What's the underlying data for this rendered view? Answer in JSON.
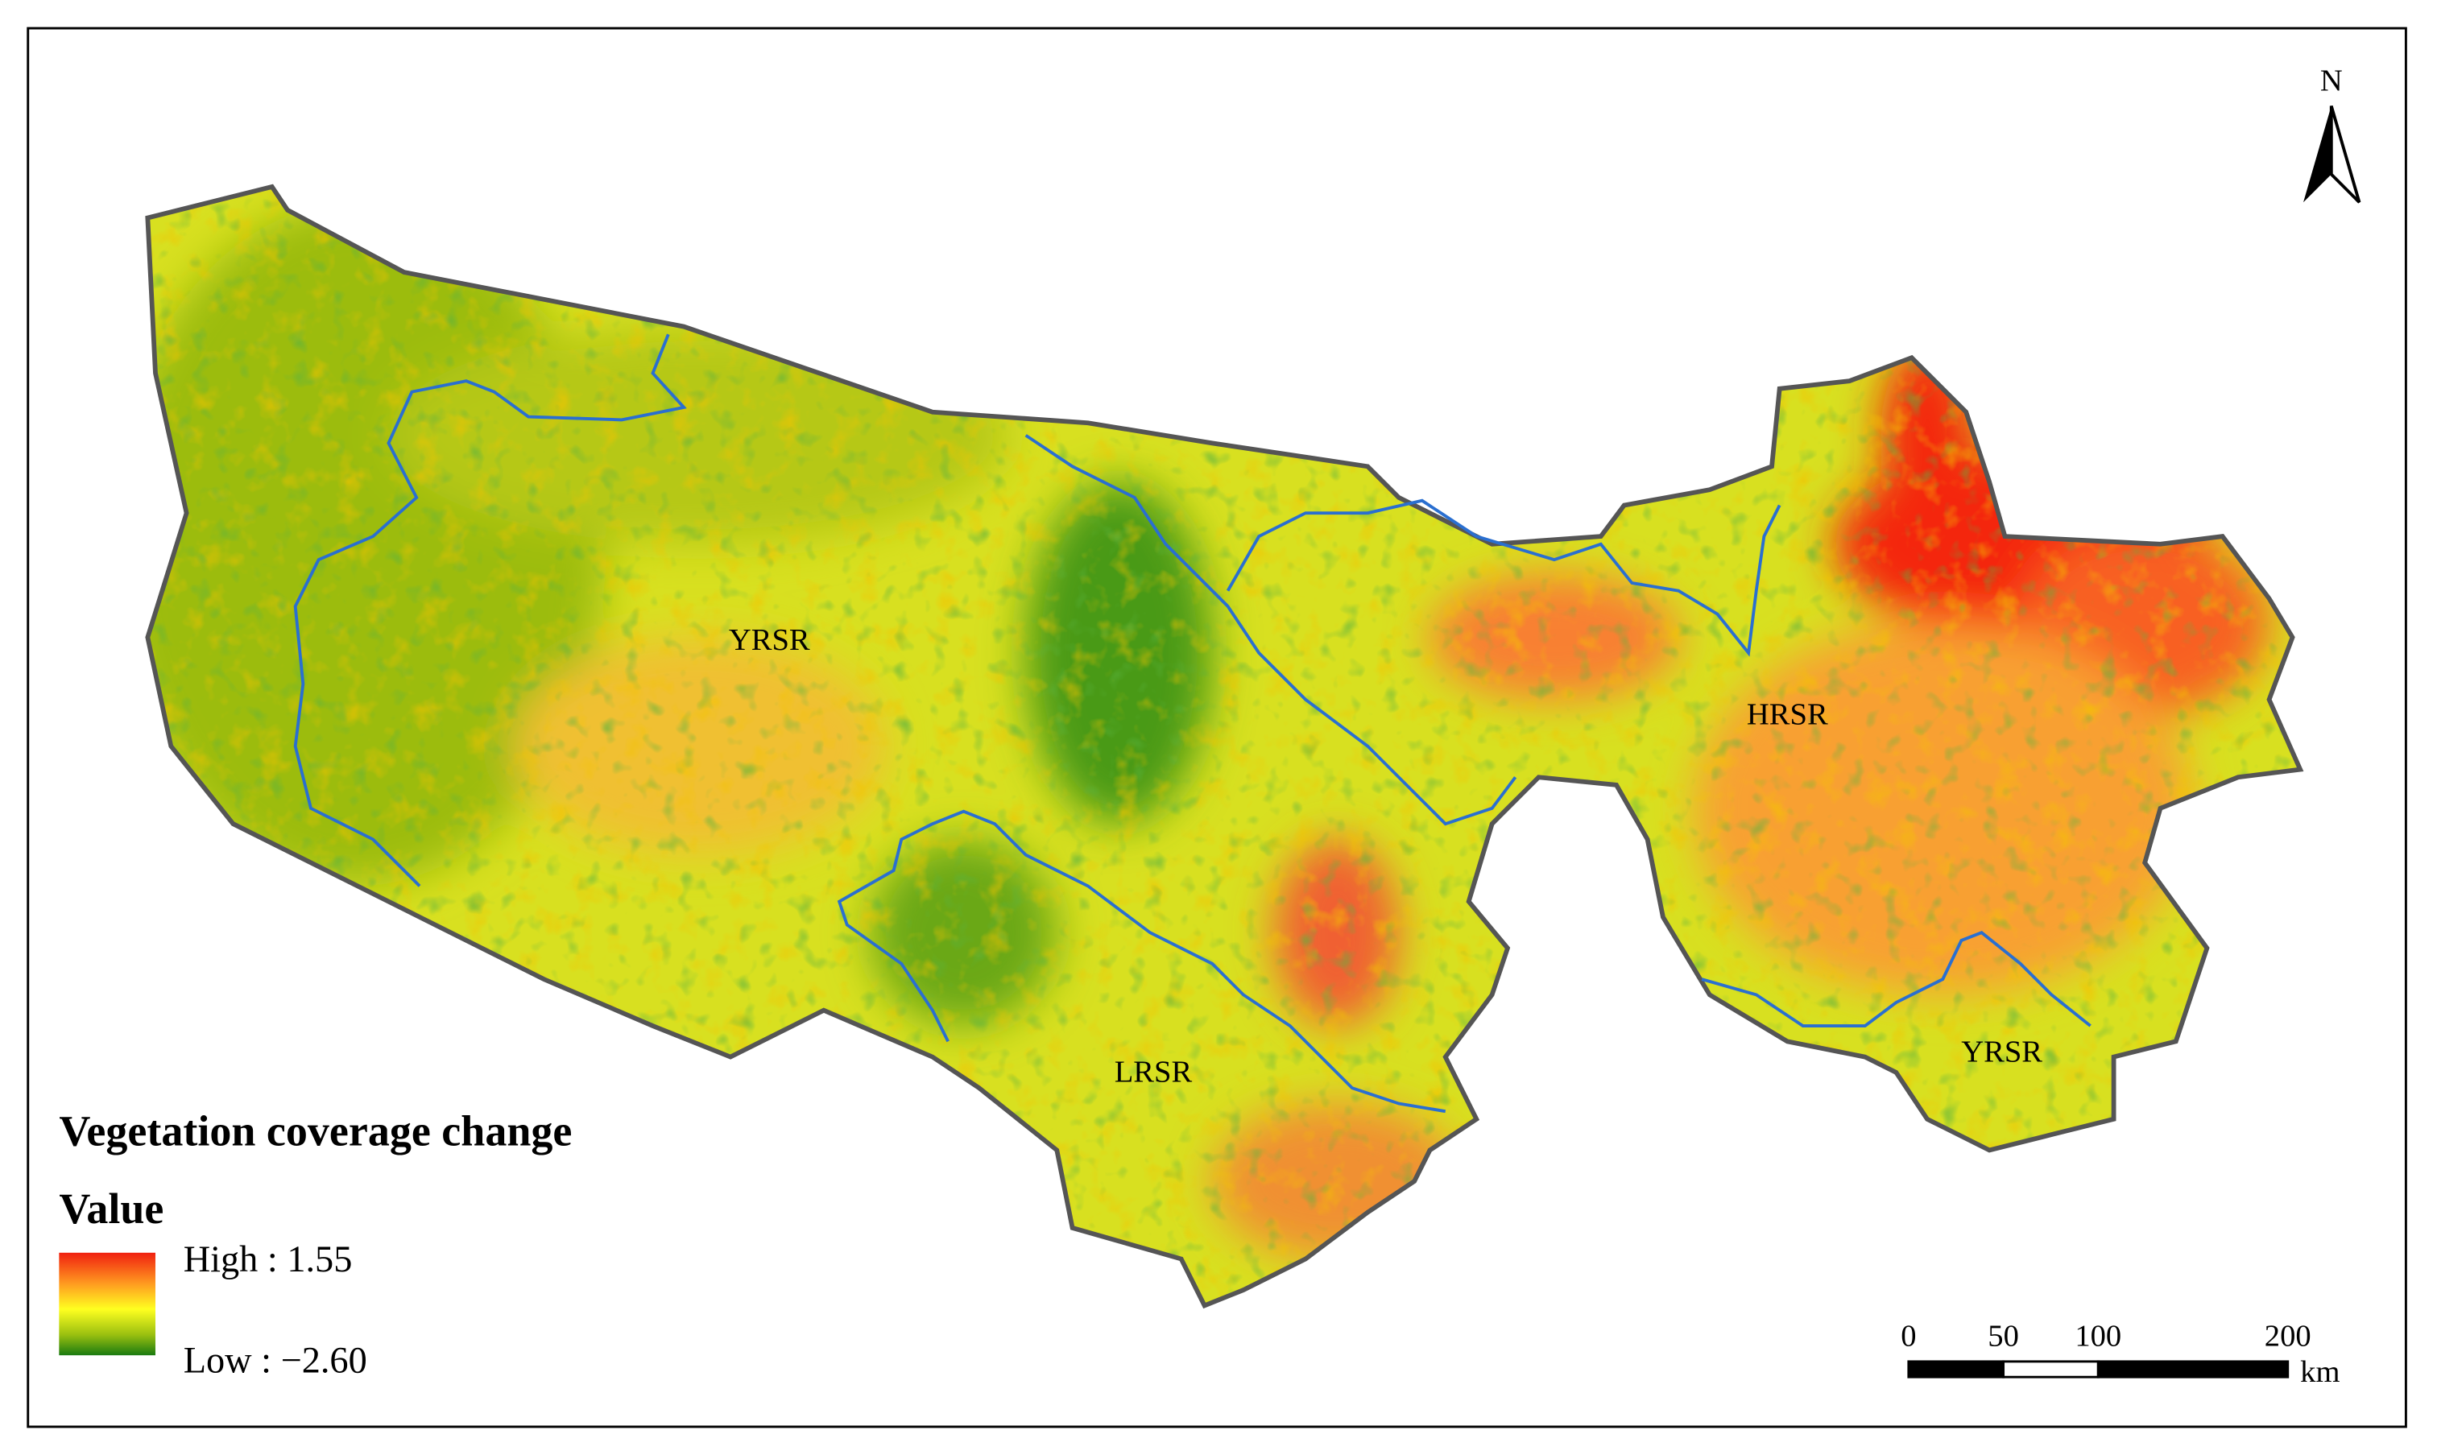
{
  "map": {
    "title": "Vegetation coverage change",
    "legend": {
      "title": "Value",
      "high": "High : 1.55",
      "low": "Low : −2.60"
    },
    "regions": [
      "YRSR",
      "HRSR",
      "LRSR",
      "YRSR"
    ],
    "north": "N",
    "scale_bar": {
      "ticks": [
        0,
        50,
        100,
        200
      ],
      "unit": "km"
    }
  }
}
